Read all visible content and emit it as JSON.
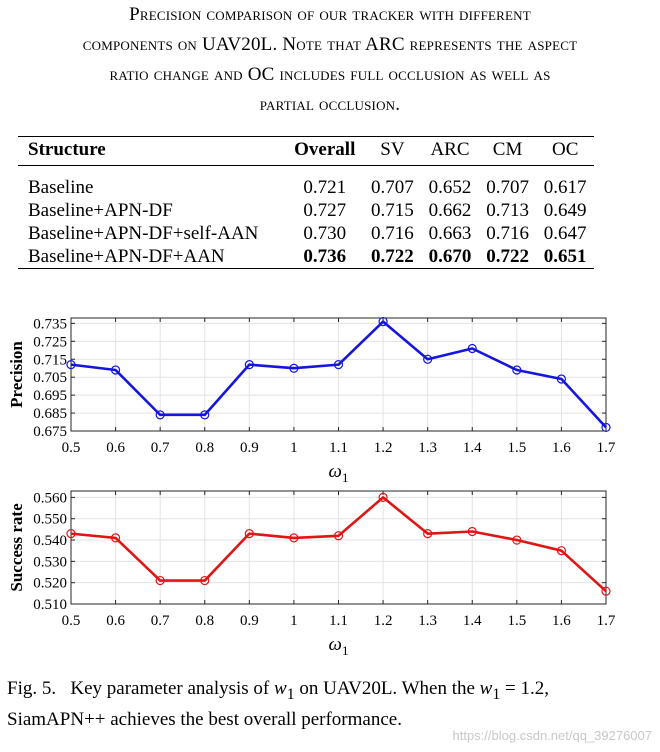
{
  "table_caption": {
    "lines": [
      "Precision comparison of our tracker with different",
      "components on UAV20L. Note that ARC represents the aspect",
      "ratio change and OC includes full occlusion as well as",
      "partial occlusion."
    ]
  },
  "table": {
    "headers": [
      "Structure",
      "Overall",
      "SV",
      "ARC",
      "CM",
      "OC"
    ],
    "rows": [
      [
        "Baseline",
        "0.721",
        "0.707",
        "0.652",
        "0.707",
        "0.617"
      ],
      [
        "Baseline+APN-DF",
        "0.727",
        "0.715",
        "0.662",
        "0.713",
        "0.649"
      ],
      [
        "Baseline+APN-DF+self-AAN",
        "0.730",
        "0.716",
        "0.663",
        "0.716",
        "0.647"
      ],
      [
        "Baseline+APN-DF+AAN",
        "0.736",
        "0.722",
        "0.670",
        "0.722",
        "0.651"
      ]
    ]
  },
  "chart_data": [
    {
      "type": "line",
      "x": [
        0.5,
        0.6,
        0.7,
        0.8,
        0.9,
        1.0,
        1.1,
        1.2,
        1.3,
        1.4,
        1.5,
        1.6,
        1.7
      ],
      "x_tick_labels": [
        "0.5",
        "0.6",
        "0.7",
        "0.8",
        "0.9",
        "1",
        "1.1",
        "1.2",
        "1.3",
        "1.4",
        "1.5",
        "1.6",
        "1.7"
      ],
      "series": [
        {
          "values": [
            0.712,
            0.709,
            0.684,
            0.684,
            0.712,
            0.71,
            0.712,
            0.736,
            0.715,
            0.721,
            0.709,
            0.704,
            0.677
          ]
        }
      ],
      "xlabel": "ω1",
      "ylabel": "Precision",
      "xlim": [
        0.5,
        1.7
      ],
      "ylim": [
        0.675,
        0.738
      ],
      "y_ticks": [
        0.675,
        0.685,
        0.695,
        0.705,
        0.715,
        0.725,
        0.735
      ],
      "y_tick_labels": [
        "0.675",
        "0.685",
        "0.695",
        "0.705",
        "0.715",
        "0.725",
        "0.735"
      ],
      "grid": true,
      "color": "#1515e0"
    },
    {
      "type": "line",
      "x": [
        0.5,
        0.6,
        0.7,
        0.8,
        0.9,
        1.0,
        1.1,
        1.2,
        1.3,
        1.4,
        1.5,
        1.6,
        1.7
      ],
      "x_tick_labels": [
        "0.5",
        "0.6",
        "0.7",
        "0.8",
        "0.9",
        "1",
        "1.1",
        "1.2",
        "1.3",
        "1.4",
        "1.5",
        "1.6",
        "1.7"
      ],
      "series": [
        {
          "values": [
            0.543,
            0.541,
            0.521,
            0.521,
            0.543,
            0.541,
            0.542,
            0.56,
            0.543,
            0.544,
            0.54,
            0.535,
            0.516
          ]
        }
      ],
      "xlabel": "ω1",
      "ylabel": "Success rate",
      "xlim": [
        0.5,
        1.7
      ],
      "ylim": [
        0.51,
        0.563
      ],
      "y_ticks": [
        0.51,
        0.52,
        0.53,
        0.54,
        0.55,
        0.56
      ],
      "y_tick_labels": [
        "0.510",
        "0.520",
        "0.530",
        "0.540",
        "0.550",
        "0.560"
      ],
      "grid": true,
      "color": "#e01515"
    }
  ],
  "figure_caption": {
    "label": "Fig. 5.",
    "text_before": "Key parameter analysis of ",
    "var1": "w",
    "sub1": "1",
    "text_mid": " on UAV20L. When the ",
    "var2": "w",
    "sub2": "1",
    "eq": " = 1.2,",
    "text_after": "SiamAPN++ achieves the best overall performance."
  },
  "watermark": "https://blog.csdn.net/qq_39276007"
}
